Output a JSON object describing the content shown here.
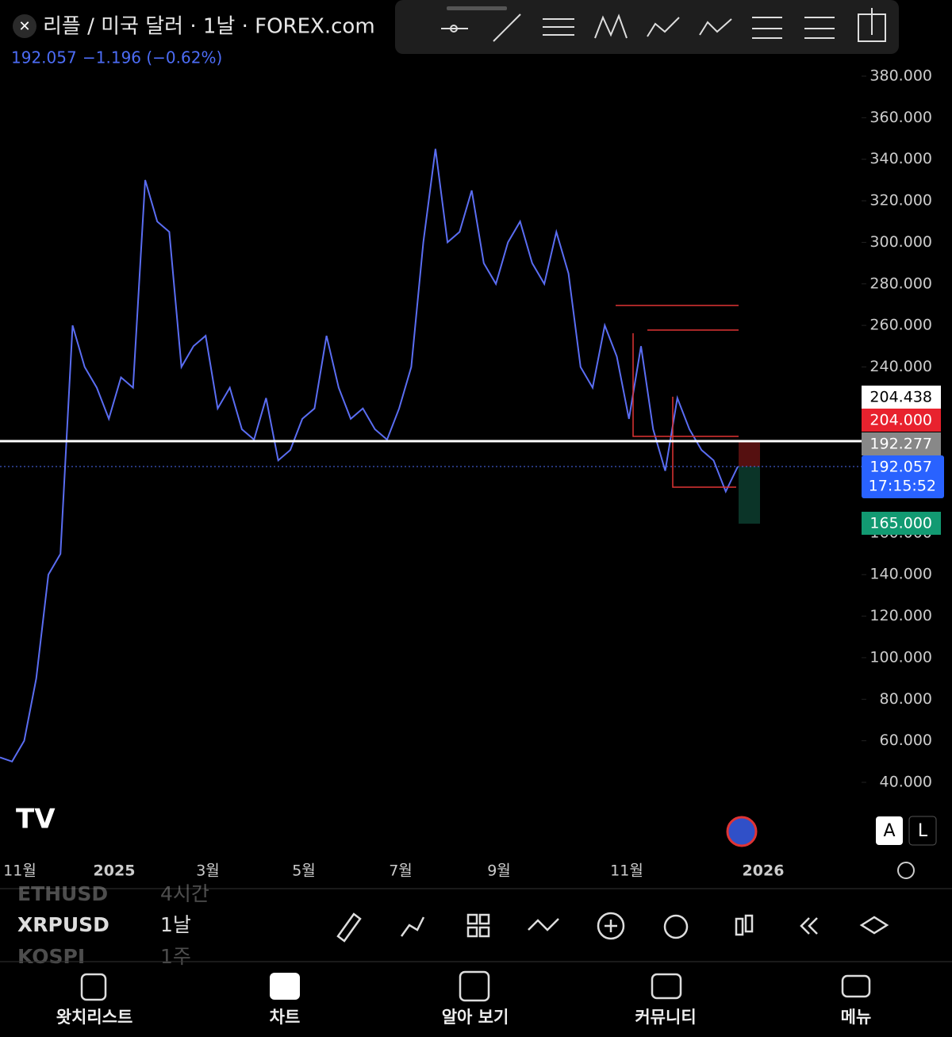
{
  "header": {
    "symbol": "리플 / 미국 달러 · 1날 · FOREX.com",
    "price": "192.057",
    "change": "−1.196 (−0.62%)"
  },
  "chart_data": {
    "type": "line",
    "color": "#5a6df2",
    "values": [
      52,
      50,
      60,
      90,
      140,
      150,
      260,
      240,
      230,
      215,
      235,
      230,
      330,
      310,
      305,
      240,
      250,
      255,
      220,
      230,
      210,
      205,
      225,
      195,
      200,
      215,
      220,
      255,
      230,
      215,
      220,
      210,
      205,
      220,
      240,
      300,
      345,
      300,
      305,
      325,
      290,
      280,
      300,
      310,
      290,
      280,
      305,
      285,
      240,
      230,
      260,
      245,
      215,
      250,
      210,
      190,
      225,
      210,
      200,
      195,
      180,
      192
    ],
    "ylim": [
      40,
      380
    ],
    "yticks": [
      {
        "value": 40,
        "label": "40.000"
      },
      {
        "value": 60,
        "label": "60.000"
      },
      {
        "value": 80,
        "label": "80.000"
      },
      {
        "value": 100,
        "label": "100.000"
      },
      {
        "value": 120,
        "label": "120.000"
      },
      {
        "value": 140,
        "label": "140.000"
      },
      {
        "value": 160,
        "label": "160.000"
      },
      {
        "value": 180,
        "label": "180.000"
      },
      {
        "value": 200,
        "label": "200.000"
      },
      {
        "value": 220,
        "label": "220.000"
      },
      {
        "value": 240,
        "label": "240.000"
      },
      {
        "value": 260,
        "label": "260.000"
      },
      {
        "value": 280,
        "label": "280.000"
      },
      {
        "value": 300,
        "label": "300.000"
      },
      {
        "value": 320,
        "label": "320.000"
      },
      {
        "value": 340,
        "label": "340.000"
      },
      {
        "value": 360,
        "label": "360.000"
      },
      {
        "value": 380,
        "label": "380.000"
      }
    ],
    "xlabels": [
      "11월",
      "2025",
      "3월",
      "5월",
      "7월",
      "9월",
      "11월",
      "2026"
    ],
    "price_tags": {
      "high": "204.438",
      "target": "204.000",
      "line": "192.277",
      "last": "192.057",
      "time": "17:15:52",
      "stop": "165.000"
    }
  },
  "scale_buttons": [
    "A",
    "L"
  ],
  "watchlist": [
    [
      "ETHUSD",
      "4시간"
    ],
    [
      "XRPUSD",
      "1날"
    ],
    [
      "KOSPI",
      "1주"
    ]
  ],
  "nav": [
    "왓치리스트",
    "차트",
    "알아 보기",
    "커뮤니티",
    "메뉴"
  ]
}
